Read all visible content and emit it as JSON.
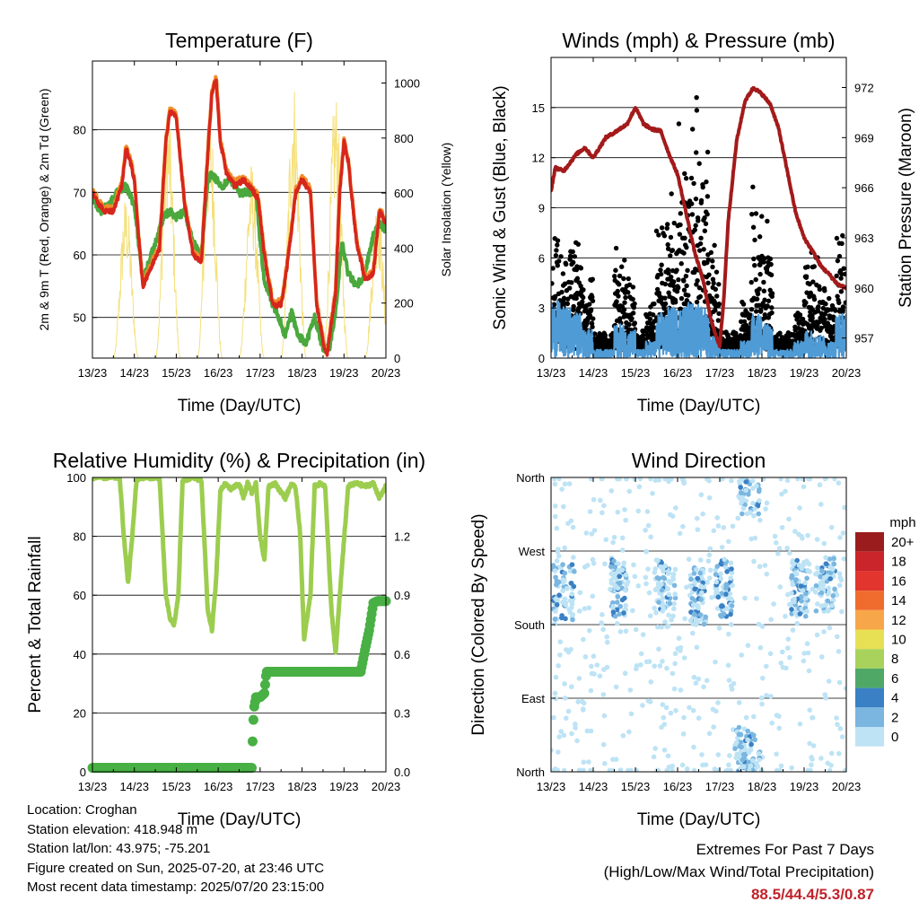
{
  "colors": {
    "temp_2m": "#d6261d",
    "temp_9m": "#f08c2a",
    "dewpoint": "#4aa83d",
    "solar": "#f5e07a",
    "wind": "#4f9bd6",
    "gust": "#000000",
    "pressure": "#a31a1a",
    "rh": "#9ccd4f",
    "precip": "#48b044",
    "extreme": "#c0232a"
  },
  "x_ticks": [
    "13/23",
    "14/23",
    "15/23",
    "16/23",
    "17/23",
    "18/23",
    "19/23",
    "20/23"
  ],
  "chart_data": [
    {
      "type": "line",
      "title": "Temperature (F)",
      "xlabel": "Time (Day/UTC)",
      "ylabel": "2m & 9m T (Red, Orange) & 2m Td (Green)",
      "y2label": "Solar Insolation (Yellow)",
      "xlim": [
        0,
        7
      ],
      "ylim": [
        43.5,
        91
      ],
      "y2lim": [
        0,
        1080
      ],
      "yticks": [
        50,
        60,
        70,
        80
      ],
      "y2ticks": [
        0,
        200,
        400,
        600,
        800,
        1000
      ],
      "series": [
        {
          "name": "2m T",
          "color": "#d6261d",
          "x": [
            0,
            0.15,
            0.3,
            0.5,
            0.7,
            0.8,
            0.9,
            1.0,
            1.1,
            1.2,
            1.4,
            1.6,
            1.75,
            1.85,
            2.0,
            2.2,
            2.4,
            2.6,
            2.75,
            2.85,
            2.95,
            3.05,
            3.2,
            3.4,
            3.6,
            3.75,
            3.85,
            3.95,
            4.1,
            4.3,
            4.5,
            4.6,
            4.75,
            4.85,
            5.0,
            5.2,
            5.35,
            5.5,
            5.6,
            5.8,
            5.9,
            6.0,
            6.1,
            6.3,
            6.5,
            6.7,
            6.85,
            7.0
          ],
          "y": [
            70,
            68,
            67,
            67,
            71,
            77,
            75,
            72,
            63,
            55,
            58,
            61,
            78,
            83,
            82,
            68,
            60,
            59,
            76,
            86,
            88,
            78,
            73,
            71,
            72,
            71,
            70,
            69,
            60,
            52,
            52,
            56,
            64,
            70,
            72,
            70,
            52,
            46,
            44,
            54,
            70,
            78,
            75,
            62,
            56,
            57,
            67,
            65
          ]
        },
        {
          "name": "2m Td",
          "color": "#4aa83d",
          "x": [
            0,
            0.2,
            0.4,
            0.6,
            0.8,
            1.0,
            1.1,
            1.2,
            1.3,
            1.5,
            1.7,
            1.85,
            2.0,
            2.2,
            2.4,
            2.6,
            2.75,
            2.85,
            2.95,
            3.1,
            3.3,
            3.5,
            3.7,
            3.9,
            4.0,
            4.1,
            4.3,
            4.45,
            4.6,
            4.75,
            4.9,
            5.1,
            5.3,
            5.5,
            5.65,
            5.8,
            5.95,
            6.1,
            6.3,
            6.5,
            6.7,
            6.85,
            7.0
          ],
          "y": [
            69,
            67,
            68,
            70,
            71,
            68,
            62,
            56,
            58,
            62,
            66,
            67,
            66,
            67,
            62,
            60,
            72,
            73,
            72,
            71,
            72,
            70,
            70,
            70,
            62,
            56,
            52,
            50,
            47,
            51,
            47,
            46,
            50,
            45,
            45,
            51,
            62,
            57,
            55,
            57,
            63,
            65,
            64
          ]
        },
        {
          "name": "Solar Insolation",
          "color": "#f5e07a",
          "axis": "y2",
          "peaks": [
            {
              "day": 0.8,
              "max": 600
            },
            {
              "day": 1.8,
              "max": 920
            },
            {
              "day": 2.8,
              "max": 920
            },
            {
              "day": 3.8,
              "max": 720
            },
            {
              "day": 4.8,
              "max": 1020
            },
            {
              "day": 5.8,
              "max": 980
            },
            {
              "day": 6.8,
              "max": 600
            }
          ]
        }
      ]
    },
    {
      "type": "scatter",
      "title": "Winds (mph) & Pressure (mb)",
      "xlabel": "Time (Day/UTC)",
      "ylabel": "Sonic Wind & Gust (Blue, Black)",
      "y2label": "Station Pressure (Maroon)",
      "xlim": [
        0,
        7
      ],
      "ylim": [
        0,
        18
      ],
      "y2lim": [
        955.8,
        973.8
      ],
      "yticks": [
        0,
        3,
        6,
        9,
        12,
        15
      ],
      "y2ticks": [
        957,
        960,
        963,
        966,
        969,
        972
      ],
      "series": [
        {
          "name": "Station Pressure",
          "color": "#a31a1a",
          "x": [
            0,
            0.1,
            0.3,
            0.6,
            0.8,
            1.0,
            1.3,
            1.5,
            1.8,
            2.0,
            2.2,
            2.4,
            2.6,
            2.8,
            3.0,
            3.2,
            3.4,
            3.6,
            3.8,
            4.0,
            4.1,
            4.2,
            4.4,
            4.6,
            4.8,
            5.0,
            5.2,
            5.4,
            5.6,
            5.8,
            6.0,
            6.2,
            6.4,
            6.6,
            6.8,
            7.0
          ],
          "y": [
            965.8,
            967.2,
            967.0,
            968.0,
            968.4,
            967.8,
            969.0,
            969.3,
            969.8,
            970.8,
            969.8,
            969.5,
            969.4,
            968.0,
            966.8,
            964.5,
            962.2,
            960.5,
            958.0,
            956.5,
            959.5,
            964.0,
            968.8,
            971.2,
            972.0,
            971.6,
            971.0,
            969.5,
            967.0,
            964.5,
            963.0,
            962.2,
            961.3,
            960.8,
            960.2,
            960.0
          ]
        },
        {
          "name": "Sonic Wind",
          "color": "#4f9bd6",
          "activity": [
            1.0,
            0.9,
            0.8,
            0.5,
            0.15,
            0.15,
            0.6,
            0.5,
            0.15,
            0.3,
            0.8,
            0.9,
            0.95,
            1.0,
            0.9,
            0.4,
            0.15,
            0.15,
            0.3,
            0.8,
            0.6,
            0.15,
            0.15,
            0.3,
            0.5,
            0.4,
            0.3,
            0.8
          ],
          "max": 5.5
        },
        {
          "name": "Gust",
          "color": "#000000",
          "activity": [
            6.2,
            5.5,
            6.0,
            5.2,
            1.0,
            1.0,
            6.0,
            4.0,
            1.0,
            2.5,
            7.0,
            9.0,
            12.5,
            15.0,
            11.0,
            6.0,
            1.0,
            1.0,
            3.0,
            9.0,
            7.0,
            1.0,
            1.0,
            2.0,
            6.5,
            5.0,
            3.0,
            6.5
          ],
          "max": 15.6
        }
      ]
    },
    {
      "type": "line",
      "title": "Relative Humidity (%) & Precipitation (in)",
      "xlabel": "Time (Day/UTC)",
      "ylabel": "Percent & Total Rainfall",
      "xlim": [
        0,
        7
      ],
      "ylim": [
        0,
        100
      ],
      "y2lim": [
        0,
        1.5
      ],
      "yticks": [
        0,
        20,
        40,
        60,
        80,
        100
      ],
      "y2ticks": [
        0.0,
        0.3,
        0.6,
        0.9,
        1.2
      ],
      "series": [
        {
          "name": "Relative Humidity",
          "color": "#9ccd4f",
          "x": [
            0,
            0.4,
            0.65,
            0.75,
            0.85,
            0.95,
            1.05,
            1.15,
            1.3,
            1.6,
            1.75,
            1.85,
            1.95,
            2.05,
            2.15,
            2.4,
            2.6,
            2.75,
            2.85,
            2.95,
            3.05,
            3.15,
            3.3,
            3.5,
            3.6,
            3.7,
            3.8,
            3.9,
            4.0,
            4.1,
            4.2,
            4.35,
            4.6,
            4.75,
            4.85,
            4.95,
            5.05,
            5.2,
            5.3,
            5.45,
            5.55,
            5.7,
            5.8,
            5.9,
            6.1,
            6.3,
            6.5,
            6.7,
            6.85,
            7.0
          ],
          "y": [
            100,
            100,
            100,
            80,
            64,
            80,
            99,
            100,
            100,
            100,
            60,
            52,
            50,
            60,
            99,
            100,
            99,
            55,
            48,
            65,
            95,
            98,
            96,
            98,
            93,
            98,
            95,
            98,
            80,
            72,
            97,
            98,
            93,
            98,
            96,
            82,
            45,
            60,
            97,
            98,
            97,
            55,
            40,
            60,
            97,
            98,
            97,
            98,
            93,
            97
          ]
        },
        {
          "name": "Total Precipitation",
          "color": "#48b044",
          "axis": "y2",
          "x": [
            0,
            0.5,
            1,
            1.5,
            2,
            2.5,
            3,
            3.5,
            3.8,
            3.81,
            3.85,
            3.9,
            4.0,
            4.1,
            4.15,
            4.3,
            4.6,
            5.0,
            5.5,
            6.0,
            6.4,
            6.5,
            6.6,
            6.7,
            6.8,
            7.0
          ],
          "y": [
            0.02,
            0.02,
            0.02,
            0.02,
            0.02,
            0.02,
            0.02,
            0.02,
            0.02,
            0.1,
            0.32,
            0.38,
            0.38,
            0.4,
            0.51,
            0.51,
            0.51,
            0.51,
            0.51,
            0.51,
            0.51,
            0.62,
            0.72,
            0.86,
            0.87,
            0.87
          ]
        }
      ]
    },
    {
      "type": "scatter",
      "title": "Wind Direction",
      "xlabel": "Time (Day/UTC)",
      "ylabel": "Direction (Colored By Speed)",
      "xlim": [
        0,
        7
      ],
      "ylim": [
        0,
        360
      ],
      "yticks": [
        0,
        90,
        180,
        270,
        360
      ],
      "ytick_labels": [
        "North",
        "East",
        "South",
        "West",
        "North"
      ],
      "colorbar": {
        "unit": "mph",
        "labels": [
          "20+",
          "18",
          "16",
          "14",
          "12",
          "10",
          "8",
          "6",
          "4",
          "2",
          "0"
        ],
        "colors": [
          "#9b1c1c",
          "#c9252a",
          "#e2352d",
          "#ef6c2e",
          "#f8a64a",
          "#e8e054",
          "#a8d25c",
          "#4fa865",
          "#3a80c4",
          "#7ab6e0",
          "#bde3f5"
        ]
      },
      "clusters": [
        {
          "day": 0.3,
          "dir": 220,
          "spread": 0.25
        },
        {
          "day": 1.6,
          "dir": 225,
          "spread": 0.2
        },
        {
          "day": 2.7,
          "dir": 225,
          "spread": 0.25
        },
        {
          "day": 3.5,
          "dir": 215,
          "spread": 0.2
        },
        {
          "day": 4.1,
          "dir": 225,
          "spread": 0.2
        },
        {
          "day": 4.6,
          "dir": 20,
          "spread": 0.25
        },
        {
          "day": 4.7,
          "dir": 350,
          "spread": 0.25
        },
        {
          "day": 5.9,
          "dir": 225,
          "spread": 0.2
        },
        {
          "day": 6.5,
          "dir": 230,
          "spread": 0.25
        }
      ]
    }
  ],
  "info": {
    "location": "Location: Croghan",
    "elevation": "Station elevation: 418.948 m",
    "latlon": "Station lat/lon: 43.975; -75.201",
    "created": "Figure created on Sun, 2025-07-20, at 23:46 UTC",
    "timestamp": "Most recent data timestamp: 2025/07/20 23:15:00"
  },
  "extremes": {
    "title": "Extremes For Past 7 Days",
    "subtitle": "(High/Low/Max Wind/Total Precipitation)",
    "values": "88.5/44.4/5.3/0.87"
  }
}
